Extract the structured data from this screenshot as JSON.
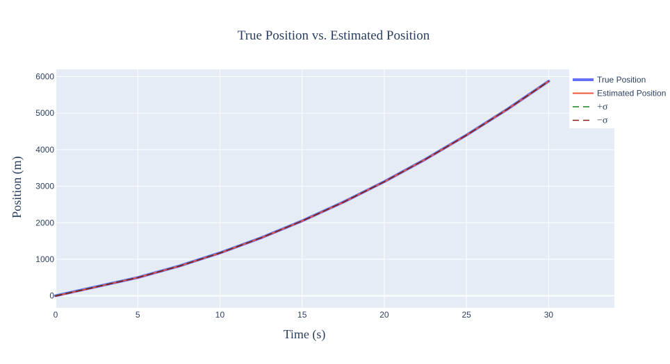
{
  "chart_data": {
    "type": "line",
    "title": "True Position vs. Estimated Position",
    "xlabel": "Time (s)",
    "ylabel": "Position (m)",
    "xlim": [
      0,
      34
    ],
    "ylim": [
      -330,
      6200
    ],
    "x_ticks": [
      0,
      5,
      10,
      15,
      20,
      25,
      30
    ],
    "y_ticks": [
      0,
      1000,
      2000,
      3000,
      4000,
      5000,
      6000
    ],
    "grid": true,
    "legend_position": "top-right",
    "plot_bgcolor": "#e5ecf6",
    "x": [
      0,
      2.5,
      5,
      7.5,
      10,
      12.5,
      15,
      17.5,
      20,
      22.5,
      25,
      27.5,
      30
    ],
    "series": [
      {
        "name": "True Position",
        "color": "#636efa",
        "dash": "solid",
        "values": [
          0,
          250,
          500,
          813,
          1175,
          1588,
          2050,
          2563,
          3125,
          3738,
          4400,
          5113,
          5875
        ]
      },
      {
        "name": "Estimated Position",
        "color": "#ef553b",
        "dash": "solid",
        "values": [
          -5,
          246,
          498,
          810,
          1172,
          1585,
          2048,
          2561,
          3123,
          3736,
          4398,
          5111,
          5873
        ]
      },
      {
        "name": "+σ",
        "color": "#1f7a1f",
        "dash": "dash",
        "values": [
          2,
          252,
          502,
          815,
          1177,
          1590,
          2052,
          2565,
          3127,
          3740,
          4402,
          5115,
          5877
        ]
      },
      {
        "name": "−σ",
        "color": "#8b1a1a",
        "dash": "dash",
        "values": [
          -8,
          244,
          496,
          808,
          1170,
          1583,
          2046,
          2559,
          3121,
          3734,
          4396,
          5109,
          5871
        ]
      }
    ]
  }
}
